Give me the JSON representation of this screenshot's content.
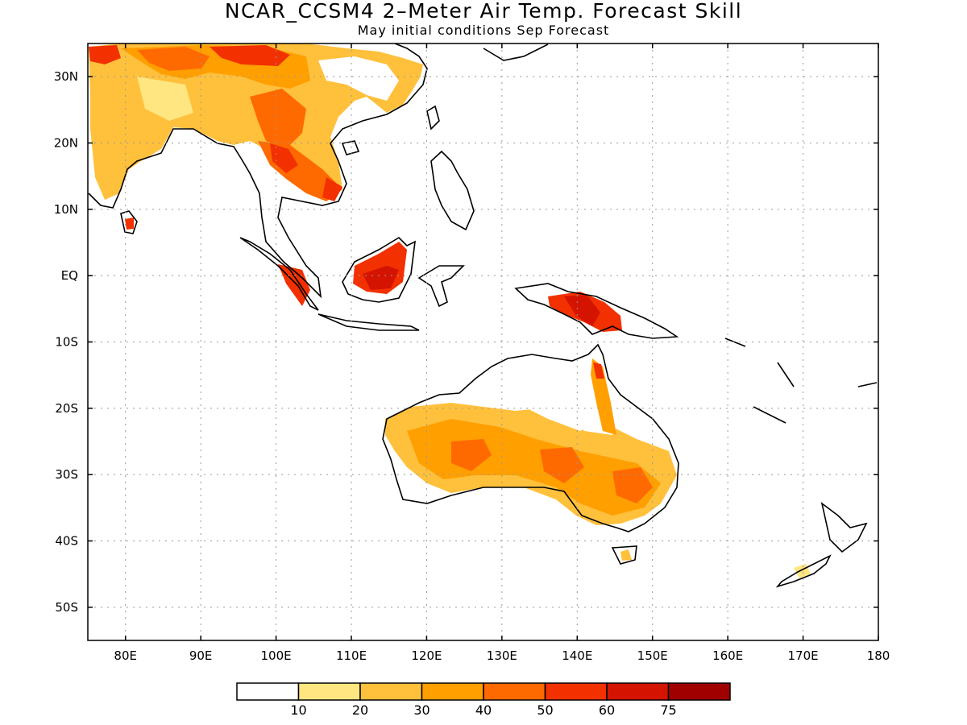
{
  "header": {
    "title": "NCAR_CCSM4 2–Meter Air Temp. Forecast Skill",
    "subtitle": "May initial conditions  Sep Forecast"
  },
  "map": {
    "lon_range": [
      75,
      180
    ],
    "lat_range": [
      -55,
      35
    ],
    "lat_ticks": [
      "30N",
      "20N",
      "10N",
      "EQ",
      "10S",
      "20S",
      "30S",
      "40S",
      "50S"
    ],
    "lon_ticks": [
      "80E",
      "90E",
      "100E",
      "110E",
      "120E",
      "130E",
      "140E",
      "150E",
      "160E",
      "170E",
      "180"
    ],
    "gridlines": true
  },
  "colorbar": {
    "labels": [
      "10",
      "20",
      "30",
      "40",
      "50",
      "60",
      "75"
    ],
    "colors": [
      "#ffffff",
      "#ffe680",
      "#ffc03c",
      "#ff9f00",
      "#ff6a00",
      "#f23000",
      "#d41400",
      "#a00000"
    ]
  }
}
